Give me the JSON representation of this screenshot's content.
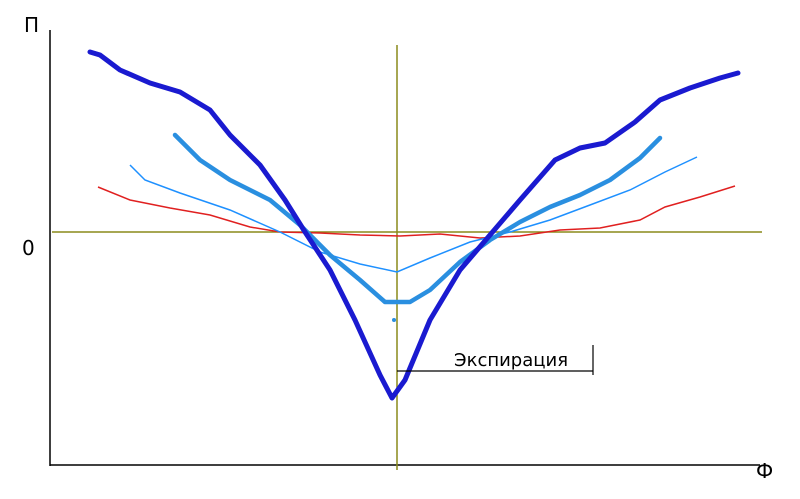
{
  "labels": {
    "y_axis": "П",
    "origin": "0",
    "x_axis": "Ф",
    "annotation": "Экспирация"
  }
}
